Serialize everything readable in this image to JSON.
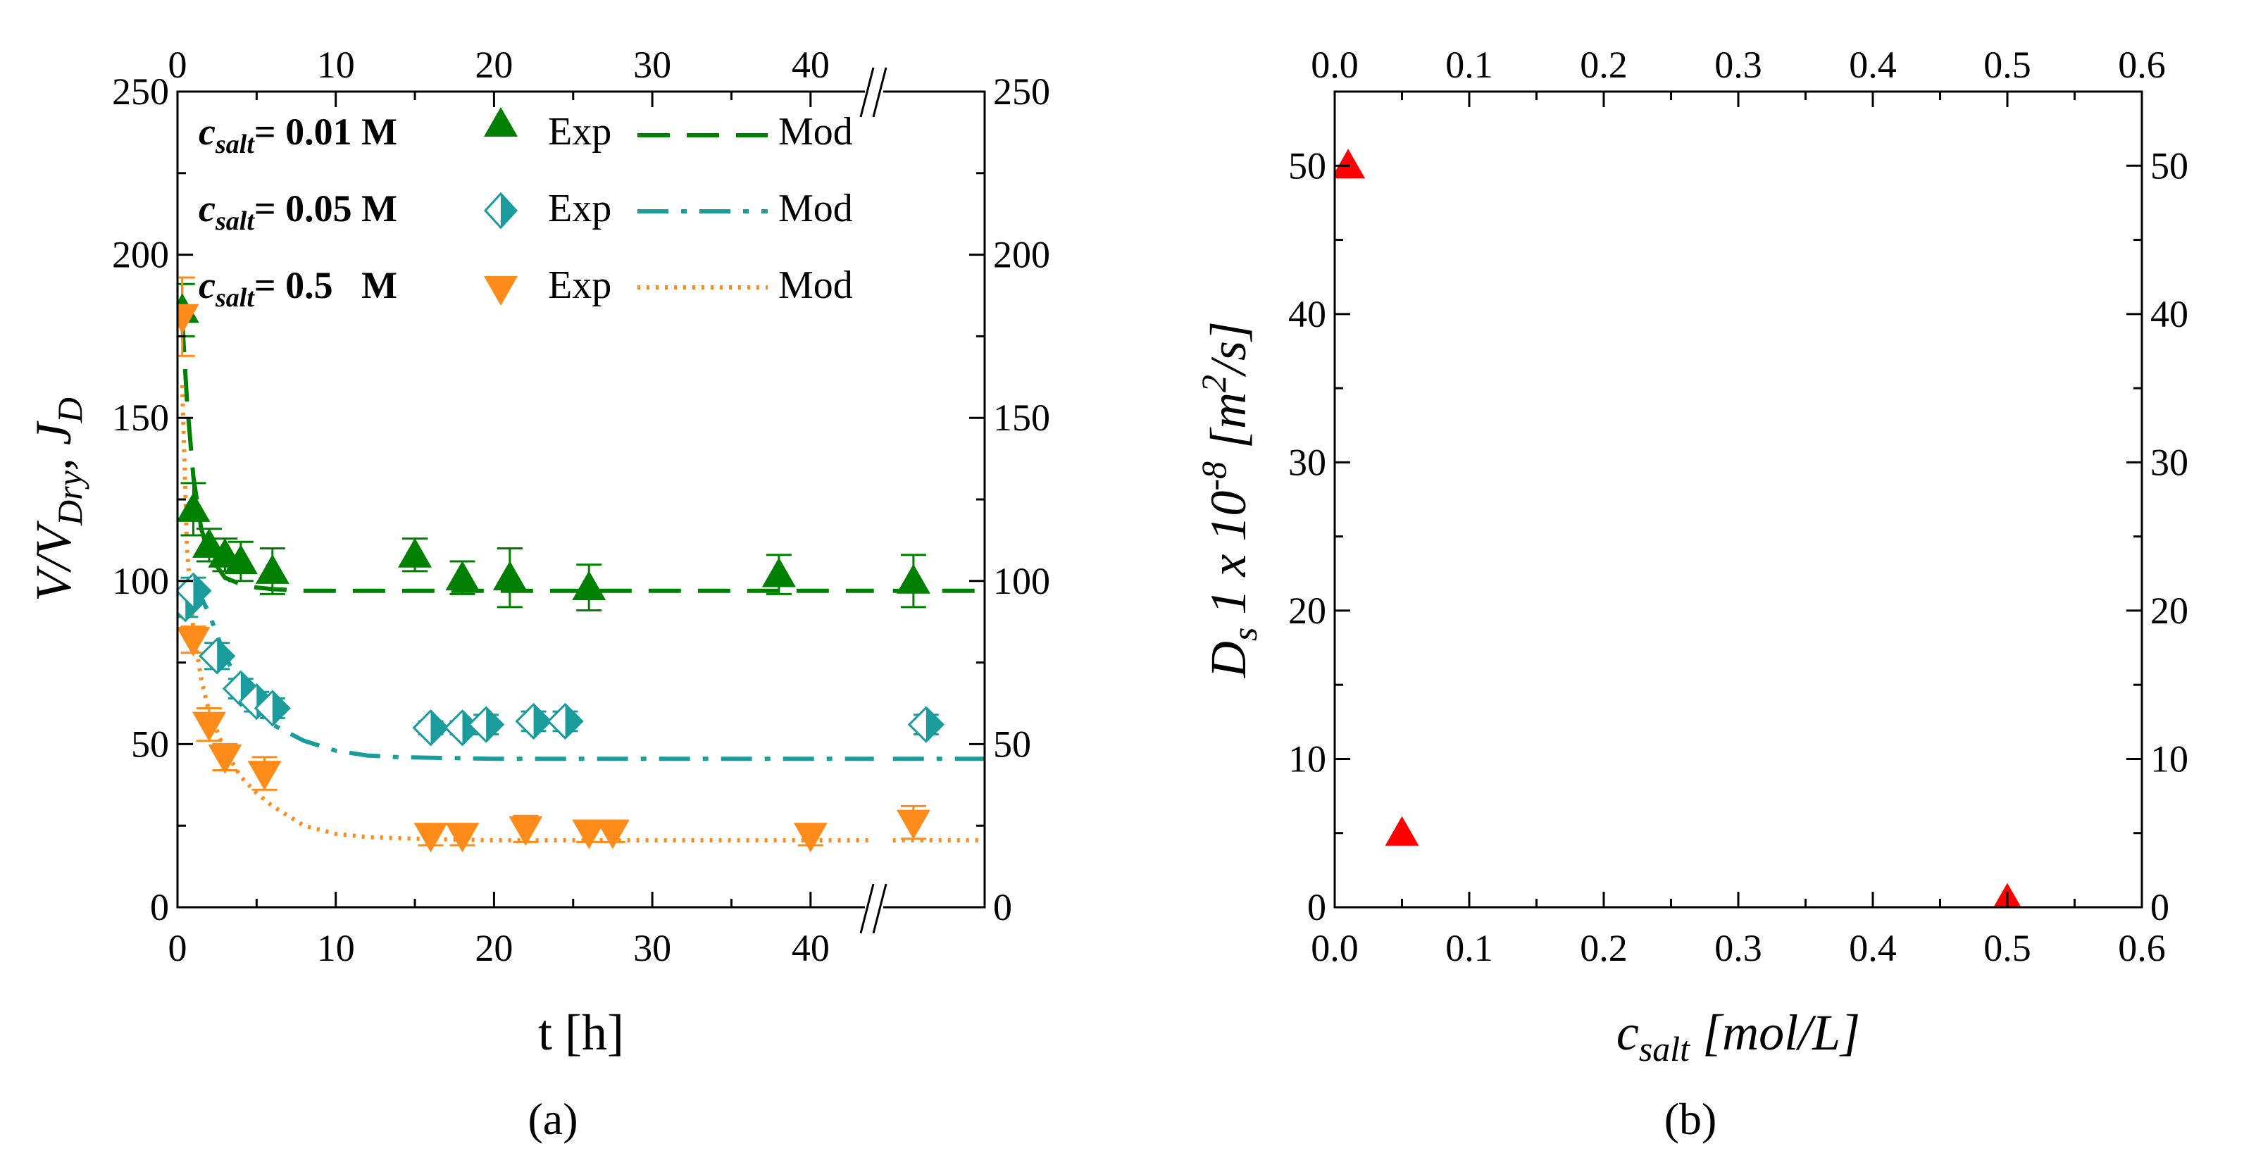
{
  "chart_data": [
    {
      "panel": "a",
      "type": "scatter",
      "panel_label": "(a)",
      "xlabel": "t [h]",
      "ylabel": "V/VDry, JD",
      "ylabel_parts": {
        "main": "V/V",
        "sub1": "Dry",
        "comma": ", J",
        "sub2": "D"
      },
      "xlim": [
        0,
        51
      ],
      "ylim": [
        0,
        250
      ],
      "x_ticks": [
        0,
        10,
        20,
        30,
        40
      ],
      "y_ticks": [
        0,
        50,
        100,
        150,
        200,
        250
      ],
      "x_tick_labels": [
        "0",
        "10",
        "20",
        "30",
        "40"
      ],
      "y_tick_labels": [
        "0",
        "50",
        "100",
        "150",
        "200",
        "250"
      ],
      "y_tick_labels_right": [
        "0",
        "50",
        "100",
        "150",
        "200",
        "250"
      ],
      "axis_break_x": 44.8,
      "legend_exp": "Exp",
      "legend_mod": "Mod",
      "series": [
        {
          "name": "csalt= 0.01 M",
          "label_c": "c",
          "label_sub": "salt",
          "label_rest": "= 0.01 M",
          "color": "#008000",
          "marker": "triangle-up",
          "exp_x": [
            0.3,
            1,
            2,
            3,
            4,
            6,
            15,
            18,
            21,
            26,
            38,
            46.5
          ],
          "exp_y": [
            183,
            122,
            111,
            108,
            106,
            103,
            108,
            101,
            101,
            98,
            102,
            100
          ],
          "exp_err": [
            8,
            8,
            5,
            5,
            6,
            7,
            5,
            5,
            9,
            7,
            6,
            8
          ],
          "mod_x": [
            0.3,
            0.6,
            1,
            1.5,
            2,
            3,
            4,
            5,
            6,
            8,
            10,
            15,
            20,
            30,
            40,
            44,
            45.2,
            51
          ],
          "mod_y": [
            180,
            155,
            132,
            116,
            108,
            101,
            99,
            98,
            97.5,
            97,
            97,
            97,
            97,
            97,
            97,
            97,
            97,
            97
          ],
          "mod_style": "dash"
        },
        {
          "name": "csalt= 0.05 M",
          "label_c": "c",
          "label_sub": "salt",
          "label_rest": "= 0.05 M",
          "color": "#1a9c9c",
          "marker": "half-diamond",
          "exp_x": [
            0.5,
            1,
            2.5,
            4,
            5,
            6,
            16,
            18,
            19.5,
            22.5,
            24.5,
            47.3
          ],
          "exp_y": [
            93,
            97,
            77,
            67,
            63,
            61,
            55,
            55,
            56,
            57,
            57,
            56
          ],
          "exp_err": [
            4,
            4,
            4,
            3,
            3,
            3,
            2,
            2,
            3,
            3,
            3,
            3
          ],
          "mod_x": [
            1,
            1.5,
            2,
            3,
            4,
            5,
            6,
            8,
            10,
            12,
            14,
            20,
            30,
            40,
            44,
            45.2,
            51
          ],
          "mod_y": [
            100,
            95,
            90,
            77,
            68,
            61,
            56,
            51,
            48,
            46.5,
            46,
            45.5,
            45.5,
            45.5,
            45.5,
            45.5,
            45.5
          ],
          "mod_style": "dashdot"
        },
        {
          "name": "csalt= 0.5 M",
          "label_c": "c",
          "label_sub": "salt",
          "label_rest": "= 0.5   M",
          "color": "#ff8c1a",
          "marker": "triangle-down",
          "exp_x": [
            0.3,
            1,
            2,
            3,
            5.5,
            16,
            18,
            22,
            26,
            27.5,
            40,
            46.5
          ],
          "exp_y": [
            181,
            82,
            56,
            46,
            41,
            22,
            22,
            24,
            23,
            23,
            22,
            26
          ],
          "exp_err": [
            12,
            4,
            5,
            4,
            5,
            3,
            3,
            4,
            3,
            3,
            3,
            5
          ],
          "mod_x": [
            0.3,
            0.6,
            1,
            1.5,
            2,
            3,
            4,
            5,
            6,
            8,
            10,
            12,
            15,
            20,
            30,
            40,
            44,
            45.2,
            51
          ],
          "mod_y": [
            160,
            110,
            85,
            70,
            60,
            48,
            40,
            35,
            31,
            25,
            22.5,
            21.5,
            21,
            20.5,
            20.5,
            20.5,
            20.5,
            20.5,
            20.5
          ],
          "mod_style": "dot"
        }
      ]
    },
    {
      "panel": "b",
      "type": "scatter",
      "panel_label": "(b)",
      "xlabel": "csalt [mol/L]",
      "xlabel_parts": {
        "c": "c",
        "sub": "salt",
        "rest": " [mol/L]"
      },
      "ylabel": "Ds 1 x 10-8 [m2/s]",
      "ylabel_parts": {
        "d": "D",
        "sub": "s",
        "mid": " 1 x 10",
        "sup": "-8",
        "unit_a": " [m",
        "unit_sup": "2",
        "unit_b": "/s]"
      },
      "xlim": [
        0,
        0.6
      ],
      "ylim": [
        0,
        55
      ],
      "x_ticks": [
        0,
        0.1,
        0.2,
        0.3,
        0.4,
        0.5,
        0.6
      ],
      "y_ticks": [
        0,
        10,
        20,
        30,
        40,
        50
      ],
      "x_tick_labels": [
        "0.0",
        "0.1",
        "0.2",
        "0.3",
        "0.4",
        "0.5",
        "0.6"
      ],
      "y_tick_labels": [
        "0",
        "10",
        "20",
        "30",
        "40",
        "50"
      ],
      "y_tick_labels_right": [
        "0",
        "10",
        "20",
        "30",
        "40",
        "50"
      ],
      "series": [
        {
          "name": "Ds",
          "color": "#ff0000",
          "marker": "triangle-up",
          "x": [
            0.01,
            0.05,
            0.5
          ],
          "y": [
            50,
            5,
            0.5
          ]
        }
      ]
    }
  ]
}
